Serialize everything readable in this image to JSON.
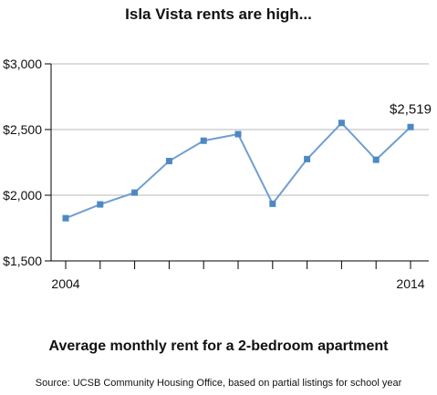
{
  "title": "Isla Vista rents are high...",
  "subtitle": "Average monthly rent for a 2-bedroom apartment",
  "source": "Source: UCSB Community Housing Office, based on partial listings for school year",
  "colors": {
    "line": "#6f9fd1",
    "marker": "#4d88c4",
    "grid": "#b9b9b9",
    "axis": "#000000"
  },
  "chart_data": {
    "type": "line",
    "x": [
      2004,
      2005,
      2006,
      2007,
      2008,
      2009,
      2010,
      2011,
      2012,
      2013,
      2014
    ],
    "series": [
      {
        "values": [
          1825,
          1930,
          2020,
          2260,
          2415,
          2465,
          1935,
          2275,
          2550,
          2270,
          2519
        ]
      }
    ],
    "ylim": [
      1500,
      3000
    ],
    "yticks": [
      1500,
      2000,
      2500,
      3000
    ],
    "ytick_labels": [
      "$1,500",
      "$2,000",
      "$2,500",
      "$3,000"
    ],
    "xlim": [
      2004,
      2014
    ],
    "xtick_labels": [
      "2004",
      "2014"
    ],
    "annotation": {
      "text": "$2,519"
    },
    "grid": "horizontal"
  }
}
